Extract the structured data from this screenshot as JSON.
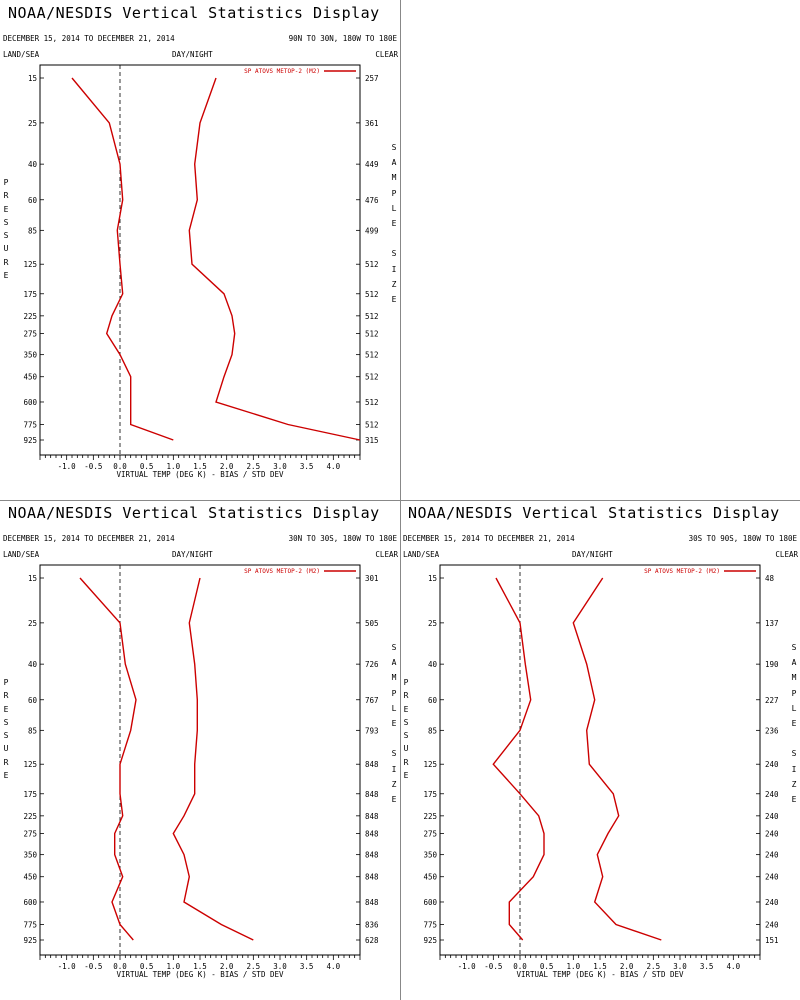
{
  "colors": {
    "series": "#cc0000",
    "axis": "#000000",
    "zero_line": "#000000"
  },
  "panels": [
    {
      "title": "NOAA/NESDIS Vertical Statistics Display",
      "dates": "DECEMBER 15, 2014 TO DECEMBER 21, 2014",
      "region": "90N TO 30N, 180W TO 180E",
      "land_sea": "LAND/SEA",
      "day_night": "DAY/NIGHT",
      "clear": "CLEAR",
      "left_vertical": "PRESSURE",
      "right_vertical": "SAMPLE SIZE"
    },
    {
      "title": "NOAA/NESDIS Vertical Statistics Display",
      "dates": "DECEMBER 15, 2014 TO DECEMBER 21, 2014",
      "region": "30N TO 30S, 180W TO 180E",
      "land_sea": "LAND/SEA",
      "day_night": "DAY/NIGHT",
      "clear": "CLEAR",
      "left_vertical": "PRESSURE",
      "right_vertical": "SAMPLE SIZE"
    },
    {
      "title": "NOAA/NESDIS Vertical Statistics Display",
      "dates": "DECEMBER 15, 2014 TO DECEMBER 21, 2014",
      "region": "30S TO 90S, 180W TO 180E",
      "land_sea": "LAND/SEA",
      "day_night": "DAY/NIGHT",
      "clear": "CLEAR",
      "left_vertical": "PRESSURE",
      "right_vertical": "SAMPLE SIZE"
    }
  ],
  "chart_data": [
    {
      "type": "line",
      "xlabel": "VIRTUAL TEMP (DEG K) - BIAS / STD DEV",
      "xlim": [
        -1.5,
        4.5
      ],
      "xticks": [
        "-1.0",
        "-0.5",
        "0.0",
        "0.5",
        "1.0",
        "1.5",
        "2.0",
        "2.5",
        "3.0",
        "3.5",
        "4.0"
      ],
      "pressure_levels": [
        "15",
        "25",
        "40",
        "60",
        "85",
        "125",
        "175",
        "225",
        "275",
        "350",
        "450",
        "600",
        "775",
        "925"
      ],
      "sample_size": [
        "257",
        "361",
        "449",
        "476",
        "499",
        "512",
        "512",
        "512",
        "512",
        "512",
        "512",
        "512",
        "512",
        "315"
      ],
      "legend": "SP ATOVS METOP-2 (M2)",
      "bias": [
        -0.9,
        -0.2,
        0.0,
        0.05,
        -0.05,
        0.0,
        0.05,
        -0.15,
        -0.25,
        0.0,
        0.2,
        0.2,
        0.2,
        1.0
      ],
      "std_dev": [
        1.8,
        1.5,
        1.4,
        1.45,
        1.3,
        1.35,
        1.95,
        2.1,
        2.15,
        2.1,
        1.95,
        1.8,
        3.15,
        4.5
      ]
    },
    {
      "type": "line",
      "xlabel": "VIRTUAL TEMP (DEG K) - BIAS / STD DEV",
      "xlim": [
        -1.5,
        4.5
      ],
      "xticks": [
        "-1.0",
        "-0.5",
        "0.0",
        "0.5",
        "1.0",
        "1.5",
        "2.0",
        "2.5",
        "3.0",
        "3.5",
        "4.0"
      ],
      "pressure_levels": [
        "15",
        "25",
        "40",
        "60",
        "85",
        "125",
        "175",
        "225",
        "275",
        "350",
        "450",
        "600",
        "775",
        "925"
      ],
      "sample_size": [
        "301",
        "505",
        "726",
        "767",
        "793",
        "848",
        "848",
        "848",
        "848",
        "848",
        "848",
        "848",
        "836",
        "628"
      ],
      "legend": "SP ATOVS METOP-2 (M2)",
      "bias": [
        -0.75,
        0.0,
        0.1,
        0.3,
        0.2,
        0.0,
        0.0,
        0.05,
        -0.1,
        -0.1,
        0.05,
        -0.15,
        0.0,
        0.25
      ],
      "std_dev": [
        1.5,
        1.3,
        1.4,
        1.45,
        1.45,
        1.4,
        1.4,
        1.2,
        1.0,
        1.2,
        1.3,
        1.2,
        1.9,
        2.5
      ]
    },
    {
      "type": "line",
      "xlabel": "VIRTUAL TEMP (DEG K) - BIAS / STD DEV",
      "xlim": [
        -1.5,
        4.5
      ],
      "xticks": [
        "-1.0",
        "-0.5",
        "0.0",
        "0.5",
        "1.0",
        "1.5",
        "2.0",
        "2.5",
        "3.0",
        "3.5",
        "4.0"
      ],
      "pressure_levels": [
        "15",
        "25",
        "40",
        "60",
        "85",
        "125",
        "175",
        "225",
        "275",
        "350",
        "450",
        "600",
        "775",
        "925"
      ],
      "sample_size": [
        "48",
        "137",
        "190",
        "227",
        "236",
        "240",
        "240",
        "240",
        "240",
        "240",
        "240",
        "240",
        "240",
        "151"
      ],
      "legend": "SP ATOVS METOP-2 (M2)",
      "bias": [
        -0.45,
        0.0,
        0.1,
        0.2,
        0.0,
        -0.5,
        0.0,
        0.35,
        0.45,
        0.45,
        0.25,
        -0.2,
        -0.2,
        0.05
      ],
      "std_dev": [
        1.55,
        1.0,
        1.25,
        1.4,
        1.25,
        1.3,
        1.75,
        1.85,
        1.65,
        1.45,
        1.55,
        1.4,
        1.8,
        2.65
      ]
    }
  ]
}
